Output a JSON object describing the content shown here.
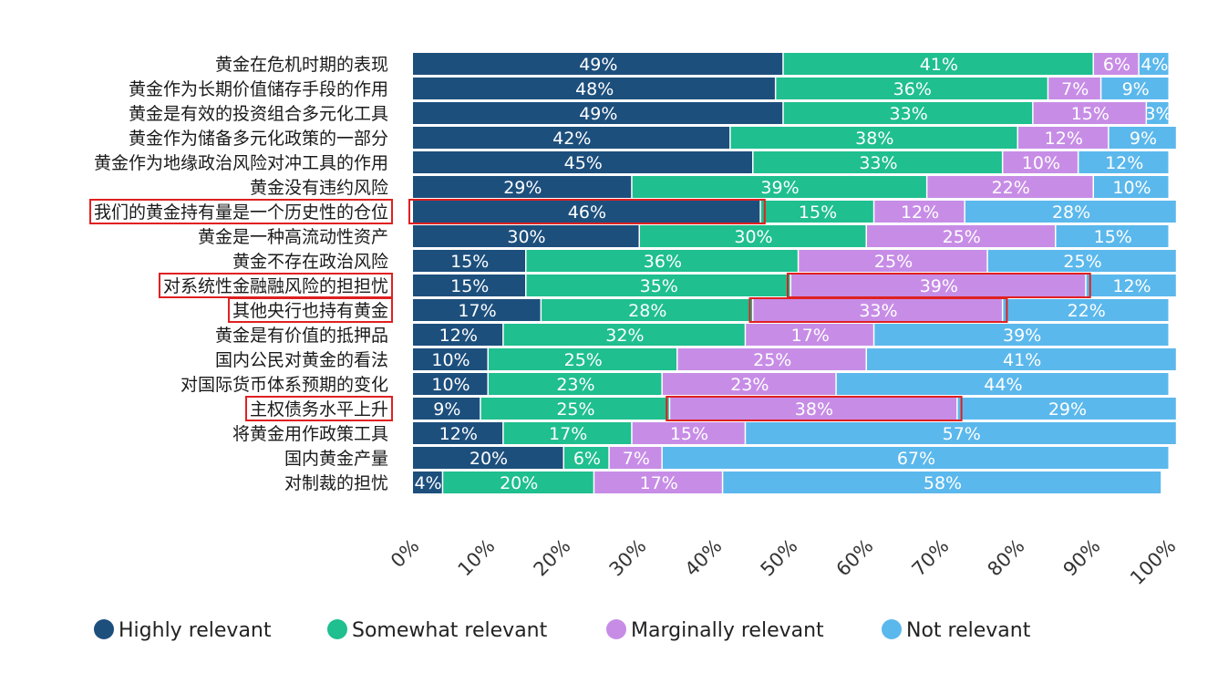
{
  "chart_data": {
    "type": "bar",
    "orientation": "horizontal",
    "stacked": true,
    "categories": [
      "黄金在危机时期的表现",
      "黄金作为长期价值储存手段的作用",
      "黄金是有效的投资组合多元化工具",
      "黄金作为储备多元化政策的一部分",
      "黄金作为地缘政治风险对冲工具的作用",
      "黄金没有违约风险",
      "我们的黄金持有量是一个历史性的仓位",
      "黄金是一种高流动性资产",
      "黄金不存在政治风险",
      "对系统性金融融风险的担担忧",
      "其他央行也持有黄金",
      "黄金是有价值的抵押品",
      "国内公民对黄金的看法",
      "对国际货币体系预期的变化",
      "主权债务水平上升",
      "将黄金用作政策工具",
      "国内黄金产量",
      "对制裁的担忧"
    ],
    "series": [
      {
        "name": "Highly relevant",
        "color": "#1d4f7d",
        "values": [
          49,
          48,
          49,
          42,
          45,
          29,
          46,
          30,
          15,
          15,
          17,
          12,
          10,
          10,
          9,
          12,
          20,
          4
        ]
      },
      {
        "name": "Somewhat relevant",
        "color": "#1fbf8f",
        "values": [
          41,
          36,
          33,
          38,
          33,
          39,
          15,
          30,
          36,
          35,
          28,
          32,
          25,
          23,
          25,
          17,
          6,
          20
        ]
      },
      {
        "name": "Marginally relevant",
        "color": "#c78de6",
        "values": [
          6,
          7,
          15,
          12,
          10,
          22,
          12,
          25,
          25,
          39,
          33,
          17,
          25,
          23,
          38,
          15,
          7,
          17
        ]
      },
      {
        "name": "Not relevant",
        "color": "#5bb8ec",
        "values": [
          4,
          9,
          3,
          9,
          12,
          10,
          28,
          15,
          25,
          12,
          22,
          39,
          41,
          44,
          29,
          57,
          67,
          58
        ]
      }
    ],
    "xticks": [
      "0%",
      "10%",
      "20%",
      "30%",
      "40%",
      "50%",
      "60%",
      "70%",
      "80%",
      "90%",
      "100%"
    ],
    "xlim": [
      0,
      100
    ],
    "highlighted_categories": [
      "我们的黄金持有量是一个历史性的仓位",
      "对系统性金融融风险的担担忧",
      "其他央行也持有黄金",
      "主权债务水平上升"
    ],
    "highlight_boxes": [
      {
        "category": "我们的黄金持有量是一个历史性的仓位",
        "series": "Highly relevant"
      },
      {
        "category": "对系统性金融融风险的担担忧",
        "series": "Marginally relevant"
      },
      {
        "category": "其他央行也持有黄金",
        "series": "Marginally relevant"
      },
      {
        "category": "主权债务水平上升",
        "series": "Marginally relevant"
      }
    ],
    "highlight_color": "#e02020",
    "legend_position": "bottom",
    "grid": false
  }
}
